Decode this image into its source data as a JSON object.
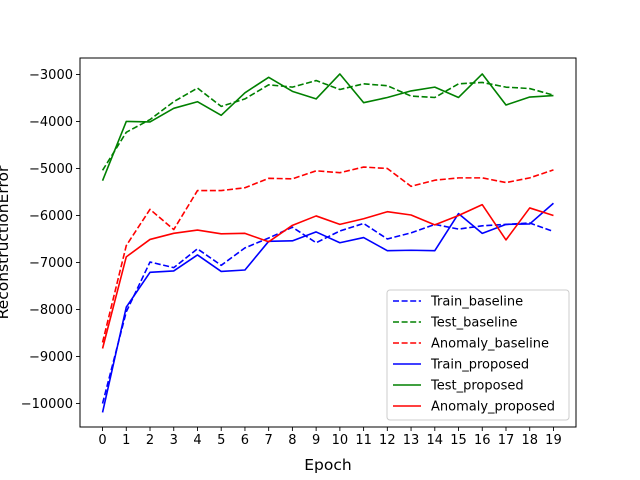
{
  "chart_data": {
    "type": "line",
    "title": "",
    "xlabel": "Epoch",
    "ylabel": "ReconstructionError",
    "x": [
      0,
      1,
      2,
      3,
      4,
      5,
      6,
      7,
      8,
      9,
      10,
      11,
      12,
      13,
      14,
      15,
      16,
      17,
      18,
      19
    ],
    "xticks": [
      "0",
      "1",
      "2",
      "3",
      "4",
      "5",
      "6",
      "7",
      "8",
      "9",
      "10",
      "11",
      "12",
      "13",
      "14",
      "15",
      "16",
      "17",
      "18",
      "19"
    ],
    "xlim": [
      -0.95,
      19.95
    ],
    "ylim": [
      -10500,
      -2650
    ],
    "yticks": [
      -10000,
      -9000,
      -8000,
      -7000,
      -6000,
      -5000,
      -4000,
      -3000
    ],
    "ytick_labels": [
      "−10000",
      "−9000",
      "−8000",
      "−7000",
      "−6000",
      "−5000",
      "−4000",
      "−3000"
    ],
    "grid": false,
    "legend_position": "lower-right",
    "series": [
      {
        "name": "Train_baseline",
        "color": "#0000ff",
        "dash": "dashed",
        "values": [
          -10000,
          -8050,
          -6990,
          -7110,
          -6710,
          -7060,
          -6690,
          -6480,
          -6250,
          -6580,
          -6330,
          -6170,
          -6500,
          -6370,
          -6190,
          -6290,
          -6220,
          -6190,
          -6160,
          -6340
        ]
      },
      {
        "name": "Test_baseline",
        "color": "#008000",
        "dash": "dashed",
        "values": [
          -5040,
          -4230,
          -3960,
          -3580,
          -3290,
          -3680,
          -3520,
          -3220,
          -3270,
          -3130,
          -3320,
          -3200,
          -3240,
          -3460,
          -3490,
          -3200,
          -3170,
          -3270,
          -3300,
          -3440
        ]
      },
      {
        "name": "Anomaly_baseline",
        "color": "#ff0000",
        "dash": "dashed",
        "values": [
          -8700,
          -6640,
          -5870,
          -6300,
          -5470,
          -5470,
          -5410,
          -5210,
          -5220,
          -5050,
          -5090,
          -4970,
          -5000,
          -5380,
          -5250,
          -5200,
          -5200,
          -5300,
          -5200,
          -5030
        ]
      },
      {
        "name": "Train_proposed",
        "color": "#0000ff",
        "dash": "solid",
        "values": [
          -10190,
          -7950,
          -7210,
          -7180,
          -6840,
          -7190,
          -7160,
          -6550,
          -6540,
          -6350,
          -6580,
          -6470,
          -6750,
          -6740,
          -6750,
          -5960,
          -6380,
          -6190,
          -6180,
          -5740
        ]
      },
      {
        "name": "Test_proposed",
        "color": "#008000",
        "dash": "solid",
        "values": [
          -5260,
          -4000,
          -4010,
          -3720,
          -3580,
          -3870,
          -3390,
          -3060,
          -3360,
          -3520,
          -2990,
          -3600,
          -3490,
          -3350,
          -3270,
          -3490,
          -2990,
          -3650,
          -3480,
          -3450
        ]
      },
      {
        "name": "Anomaly_proposed",
        "color": "#ff0000",
        "dash": "solid",
        "values": [
          -8830,
          -6880,
          -6510,
          -6380,
          -6310,
          -6390,
          -6380,
          -6560,
          -6210,
          -6010,
          -6190,
          -6070,
          -5920,
          -5990,
          -6200,
          -6000,
          -5770,
          -6520,
          -5840,
          -6000
        ]
      }
    ]
  }
}
